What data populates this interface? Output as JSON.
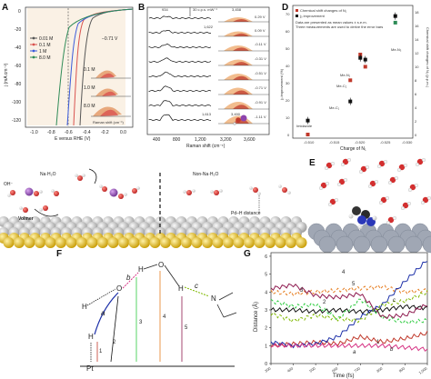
{
  "panels": {
    "A": {
      "label": "A",
      "xlabel": "E versus RHE (V)",
      "ylabel": "j (mA cm⁻²)",
      "xticks": [
        "-1.0",
        "-0.8",
        "-0.6",
        "-0.4",
        "-0.2",
        "0.0"
      ],
      "yticks": [
        "0",
        "-20",
        "-40",
        "-60",
        "-80",
        "-100",
        "-120"
      ],
      "legend": [
        "0.01 M",
        "0.1 M",
        "1 M",
        "8.0 M"
      ],
      "legend_colors": [
        "#555555",
        "#d9534f",
        "#3b5bdb",
        "#2e8b57"
      ],
      "inset_labels": [
        "0.1 M",
        "1.0 M",
        "8.0 M"
      ],
      "potential": "−0.71 V",
      "inset_xlabel": "Raman shift (cm⁻¹)"
    },
    "B": {
      "label": "B",
      "xlabel": "Raman shift (cm⁻¹)",
      "scalebar": "30 c.p.s. mW⁻¹",
      "xticks": [
        "400",
        "800",
        "1,200",
        "3,200",
        "3,600"
      ],
      "peaks": [
        "934",
        "1,622",
        "3,458",
        "1,613",
        "3,490"
      ],
      "potentials": [
        "0.29 V",
        "0.09 V",
        "-0.11 V",
        "-0.31 V",
        "-0.51 V",
        "-0.71 V",
        "-0.91 V",
        "-1.11 V"
      ]
    },
    "C": {
      "label": "C",
      "texts": [
        "Na·H₂O",
        "OH⁻",
        "Volmer",
        "Non-Na·H₂O",
        "Pd–H distance"
      ]
    },
    "D": {
      "label": "D",
      "xlabel": "Charge of N₁",
      "ylabel_left": "j₀ improvement (%)",
      "ylabel_right": "Chemical shift changes of N₁ (p.p.m.)",
      "legend": [
        "Chemical shift changes of N₁",
        "j₀ improvement"
      ],
      "note": [
        "Data are presented as mean values ± s.e.m.",
        "Three measurements are used to derive the error bars"
      ],
      "xticks": [
        "-0.510",
        "-0.515",
        "-0.520",
        "-0.525",
        "-0.530"
      ],
      "yticks_left": [
        "0",
        "10",
        "20",
        "30",
        "40",
        "50",
        "60",
        "70"
      ],
      "yticks_right": [
        "0",
        "2",
        "4",
        "6",
        "8",
        "10",
        "12",
        "14",
        "16",
        "18"
      ],
      "points": [
        "Imidazole",
        "Me-C₁",
        "Me-C₂",
        "Me-N₁",
        "Me-N₃"
      ],
      "chart_data": {
        "type": "scatter",
        "series": [
          {
            "name": "Chemical shift changes of N₁",
            "x": [
              -0.511,
              -0.5195,
              -0.5215,
              -0.5225,
              -0.5285
            ],
            "y": [
              0,
              8,
              11.8,
              10,
              16.5
            ]
          },
          {
            "name": "j₀ improvement",
            "x": [
              -0.511,
              -0.5195,
              -0.5215,
              -0.5225,
              -0.5285
            ],
            "y": [
              8,
              19,
              44,
              43,
              68
            ]
          }
        ]
      }
    },
    "E": {
      "label": "E"
    },
    "F": {
      "label": "F",
      "atoms": [
        "H",
        "O",
        "H",
        "O",
        "H",
        "N",
        "H",
        "Pt"
      ],
      "bond_labels": [
        "a",
        "b",
        "c"
      ],
      "distance_labels": [
        "1",
        "2",
        "3",
        "4",
        "5"
      ]
    },
    "G": {
      "label": "G",
      "xlabel": "Time (fs)",
      "ylabel": "Distance (Å)",
      "xticks": [
        "300",
        "400",
        "500",
        "600",
        "700",
        "800",
        "900",
        "1,000"
      ],
      "yticks": [
        "0",
        "1",
        "2",
        "3",
        "4",
        "5",
        "6"
      ],
      "curve_labels": [
        "1",
        "2",
        "3",
        "4",
        "5",
        "a",
        "b",
        "c"
      ],
      "chart_data": {
        "type": "line",
        "x": [
          300,
          400,
          500,
          600,
          700,
          800,
          900,
          1000
        ],
        "series": [
          {
            "name": "1",
            "color": "#c0392b",
            "values": [
              1.0,
              1.1,
              1.2,
              1.1,
              1.5,
              1.2,
              1.4,
              1.7
            ]
          },
          {
            "name": "2",
            "color": "#111111",
            "values": [
              3.0,
              3.0,
              2.9,
              3.0,
              2.9,
              3.0,
              3.2,
              3.1
            ]
          },
          {
            "name": "3",
            "color": "#2ecc40",
            "values": [
              3.5,
              3.2,
              3.3,
              2.5,
              3.6,
              2.6,
              2.3,
              2.4
            ]
          },
          {
            "name": "4",
            "color": "#e67e22",
            "values": [
              4.0,
              3.9,
              4.0,
              4.1,
              4.2,
              4.3,
              4.0,
              4.1
            ]
          },
          {
            "name": "5",
            "color": "#8e1a4f",
            "values": [
              4.2,
              4.4,
              3.8,
              3.7,
              3.9,
              2.6,
              2.7,
              3.3
            ]
          },
          {
            "name": "a",
            "color": "#1c2fa8",
            "values": [
              1.2,
              1.0,
              1.1,
              1.5,
              2.6,
              3.3,
              4.6,
              5.8
            ]
          },
          {
            "name": "b",
            "color": "#d63384",
            "values": [
              1.0,
              1.0,
              1.0,
              1.0,
              1.0,
              1.0,
              0.9,
              0.8
            ]
          },
          {
            "name": "c",
            "color": "#7fb800",
            "values": [
              2.8,
              2.4,
              2.7,
              2.5,
              2.4,
              3.3,
              3.5,
              4.0
            ]
          }
        ]
      }
    }
  }
}
